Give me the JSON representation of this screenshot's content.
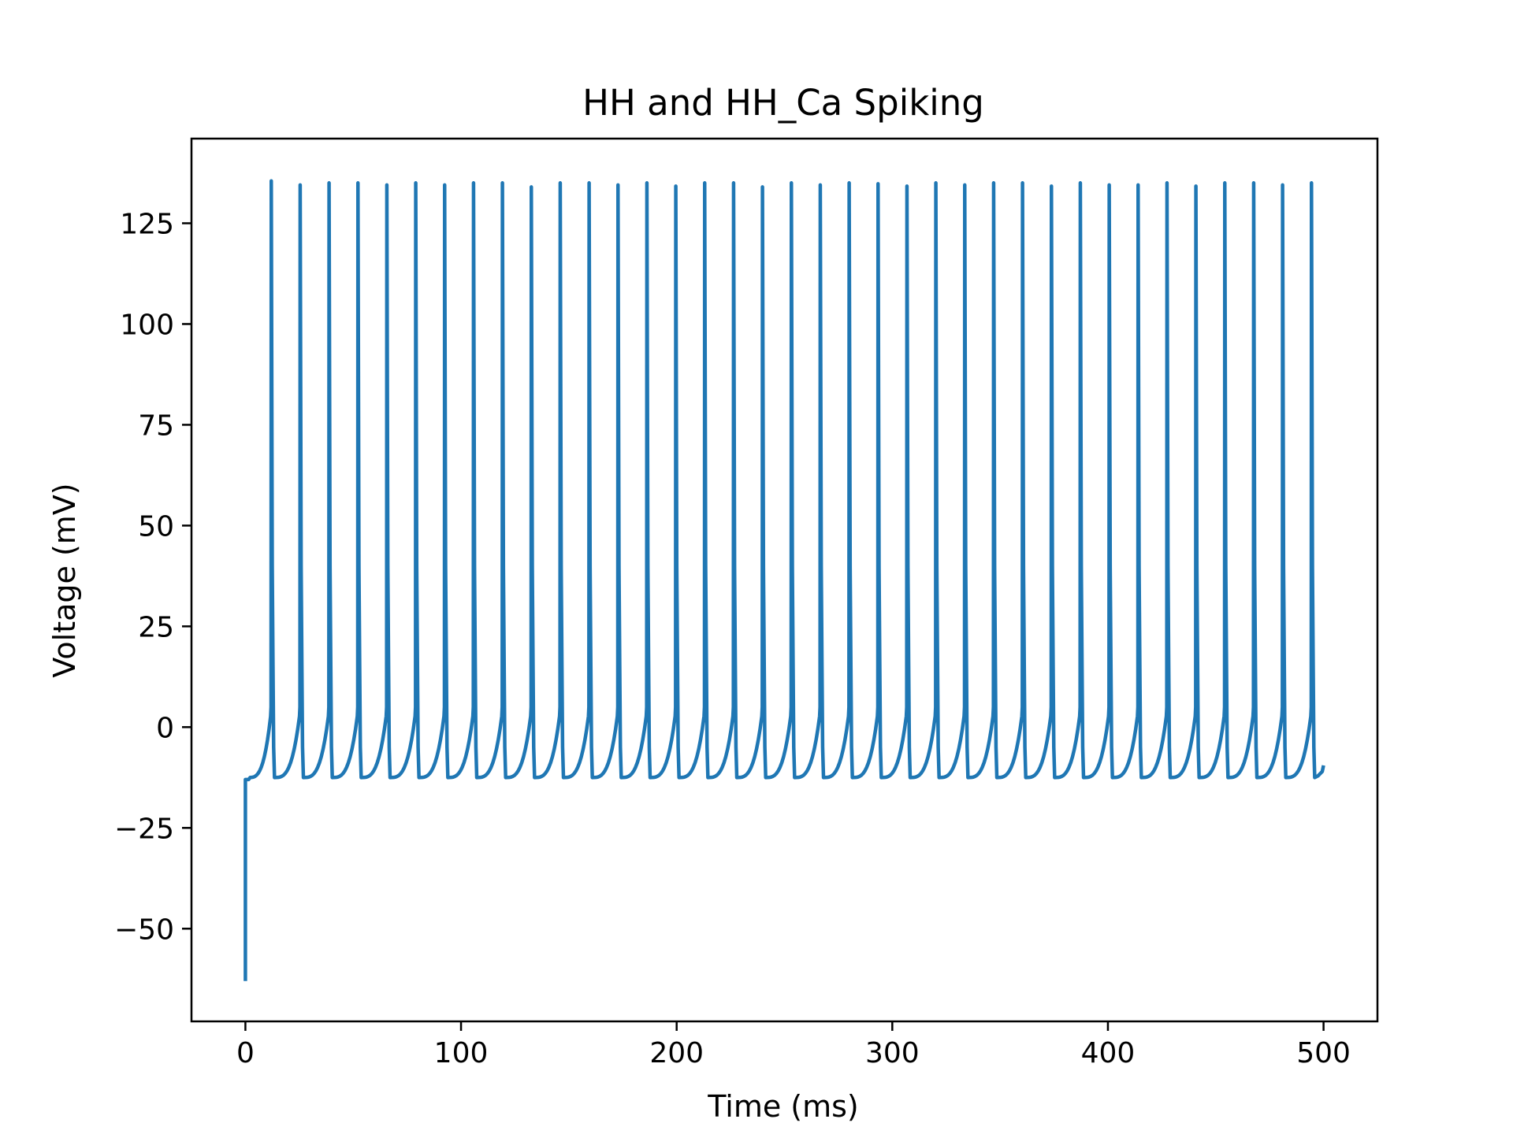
{
  "chart_data": {
    "type": "line",
    "title": "HH and HH_Ca Spiking",
    "xlabel": "Time (ms)",
    "ylabel": "Voltage (mV)",
    "xlim": [
      -25,
      525
    ],
    "ylim": [
      -73,
      146
    ],
    "xticks": [
      0,
      100,
      200,
      300,
      400,
      500
    ],
    "yticks": [
      -50,
      -25,
      0,
      25,
      50,
      75,
      100,
      125
    ],
    "ytick_labels": [
      "−50",
      "−25",
      "0",
      "25",
      "50",
      "75",
      "100",
      "125"
    ],
    "grid": false,
    "legend": "none",
    "series": [
      {
        "color": "#1f77b4",
        "initial_value": -63,
        "resting_value": -13,
        "trough_value": -12.5,
        "end_value": -9.5,
        "spike_times": [
          12,
          25.4,
          38.8,
          52.2,
          65.6,
          79,
          92.4,
          105.8,
          119.2,
          132.6,
          146,
          159.4,
          172.8,
          186.2,
          199.6,
          213,
          226.4,
          239.8,
          253.2,
          266.6,
          280,
          293.4,
          306.8,
          320.2,
          333.6,
          347,
          360.4,
          373.8,
          387.2,
          400.6,
          414,
          427.4,
          440.8,
          454.2,
          467.6,
          481,
          494.4
        ],
        "spike_peaks": [
          135.5,
          134.5,
          135,
          135,
          134.5,
          135,
          134.5,
          135,
          135,
          134,
          135,
          135,
          134.5,
          135,
          134.2,
          135,
          135,
          134,
          135,
          134.5,
          135,
          134.8,
          134.2,
          135,
          134.5,
          135,
          135,
          134.2,
          135,
          134.5,
          134.5,
          135,
          134.2,
          135,
          135,
          134.5,
          135
        ],
        "x_end": 500
      }
    ]
  }
}
